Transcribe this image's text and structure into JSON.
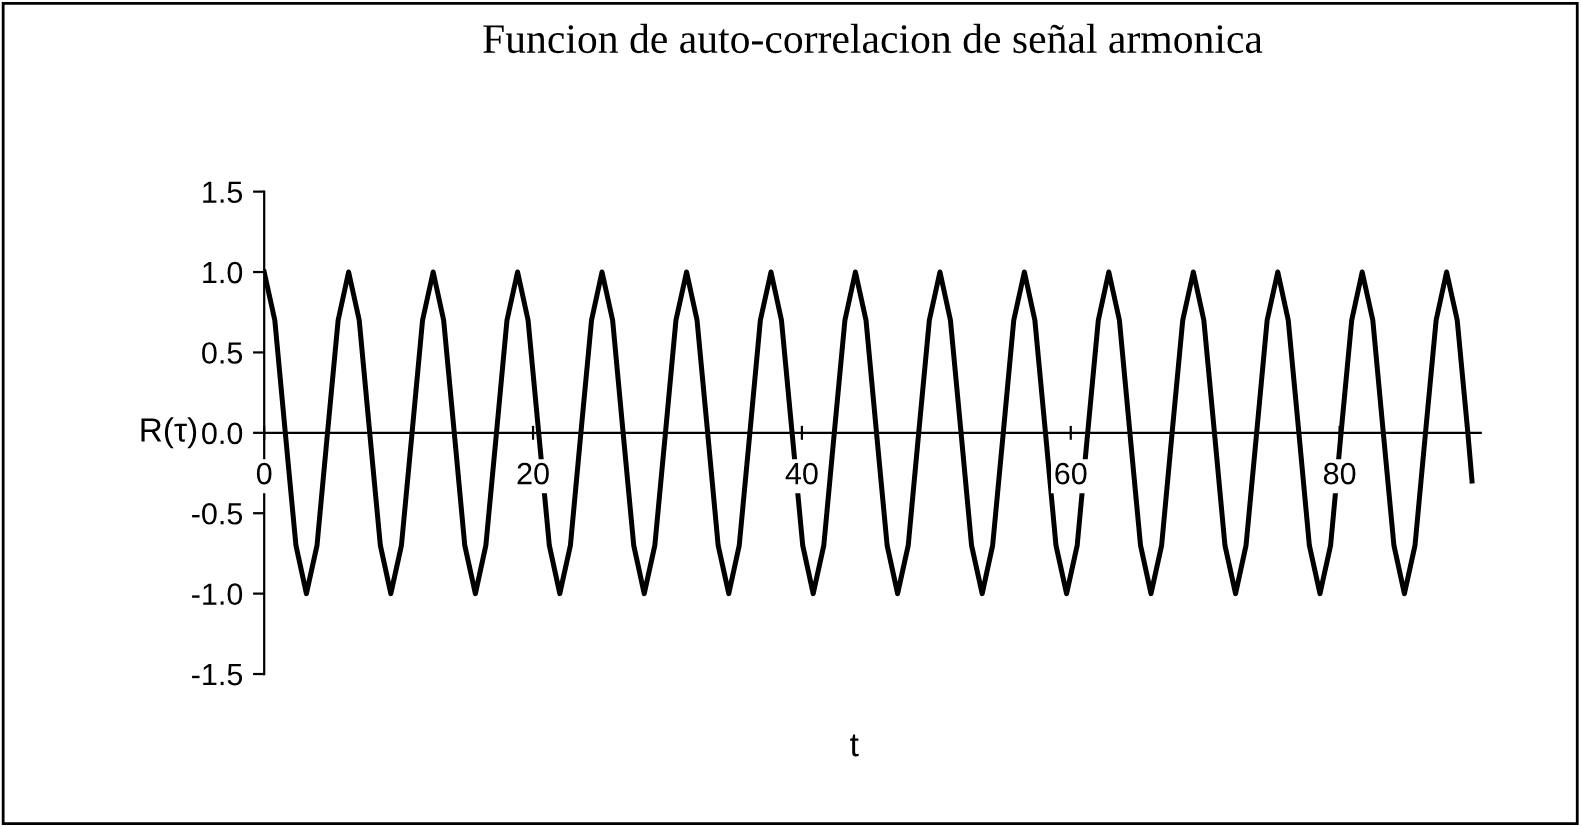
{
  "chart_data": {
    "type": "line",
    "title": "Funcion de auto-correlacion de señal armonica",
    "xlabel": "t",
    "ylabel": "R(τ)",
    "x": [
      0,
      0.79,
      1.57,
      2.36,
      3.14,
      3.93,
      4.71,
      5.5,
      6.28,
      7.07,
      7.85,
      8.64,
      9.42,
      10.21,
      11.0,
      11.78,
      12.57,
      13.35,
      14.14,
      14.92,
      15.71,
      16.49,
      17.28,
      18.06,
      18.85,
      19.63,
      20.42,
      21.21,
      21.99,
      22.78,
      23.56,
      24.35,
      25.13,
      25.92,
      26.7,
      27.49,
      28.27,
      29.06,
      29.85,
      30.63,
      31.42,
      32.2,
      32.99,
      33.77,
      34.56,
      35.34,
      36.13,
      36.91,
      37.7,
      38.48,
      39.27,
      40.06,
      40.84,
      41.63,
      42.41,
      43.2,
      43.98,
      44.77,
      45.55,
      46.34,
      47.12,
      47.91,
      48.69,
      49.48,
      50.27,
      51.05,
      51.84,
      52.62,
      53.41,
      54.19,
      54.98,
      55.76,
      56.55,
      57.33,
      58.12,
      58.9,
      59.69,
      60.48,
      61.26,
      62.05,
      62.83,
      63.62,
      64.4,
      65.19,
      65.97,
      66.76,
      67.54,
      68.33,
      69.12,
      69.9,
      70.69,
      71.47,
      72.26,
      73.04,
      73.83,
      74.61,
      75.4,
      76.18,
      76.97,
      77.75,
      78.54,
      79.33,
      80.11,
      80.9,
      81.68,
      82.47,
      83.25,
      84.04,
      84.82,
      85.61,
      86.39,
      87.18,
      87.96,
      88.75,
      89.54,
      89.85
    ],
    "series": [
      {
        "color": "#000000",
        "values": [
          1,
          0.7,
          0,
          -0.7,
          -1,
          -0.7,
          0,
          0.7,
          1,
          0.7,
          0,
          -0.7,
          -1,
          -0.7,
          0,
          0.7,
          1,
          0.7,
          0,
          -0.7,
          -1,
          -0.7,
          0,
          0.7,
          1,
          0.7,
          0,
          -0.7,
          -1,
          -0.7,
          0,
          0.7,
          1,
          0.7,
          0,
          -0.7,
          -1,
          -0.7,
          0,
          0.7,
          1,
          0.7,
          0,
          -0.7,
          -1,
          -0.7,
          0,
          0.7,
          1,
          0.7,
          0,
          -0.7,
          -1,
          -0.7,
          0,
          0.7,
          1,
          0.7,
          0,
          -0.7,
          -1,
          -0.7,
          0,
          0.7,
          1,
          0.7,
          0,
          -0.7,
          -1,
          -0.7,
          0,
          0.7,
          1,
          0.7,
          0,
          -0.7,
          -1,
          -0.7,
          0,
          0.7,
          1,
          0.7,
          0,
          -0.7,
          -1,
          -0.7,
          0,
          0.7,
          1,
          0.7,
          0,
          -0.7,
          -1,
          -0.7,
          0,
          0.7,
          1,
          0.7,
          0,
          -0.7,
          -1,
          -0.7,
          0,
          0.7,
          1,
          0.7,
          0,
          -0.7,
          -1,
          -0.7,
          0,
          0.7,
          1,
          0.7,
          0,
          -0.3
        ]
      }
    ],
    "xlim": [
      0,
      90.5
    ],
    "xticks": [
      0,
      20,
      40,
      60,
      80
    ],
    "ylim": [
      -1.5,
      1.5
    ],
    "yticks": [
      {
        "value": -1.5,
        "label": "-1.5"
      },
      {
        "value": -1.0,
        "label": "-1.0"
      },
      {
        "value": -0.5,
        "label": "-0.5"
      },
      {
        "value": 0,
        "label": "0.0"
      },
      {
        "value": 0.5,
        "label": "0.5"
      },
      {
        "value": 1.0,
        "label": "1.0"
      },
      {
        "value": 1.5,
        "label": "1.5"
      }
    ],
    "grid": false,
    "legend": false,
    "marker": "none",
    "line_style": "solid"
  }
}
